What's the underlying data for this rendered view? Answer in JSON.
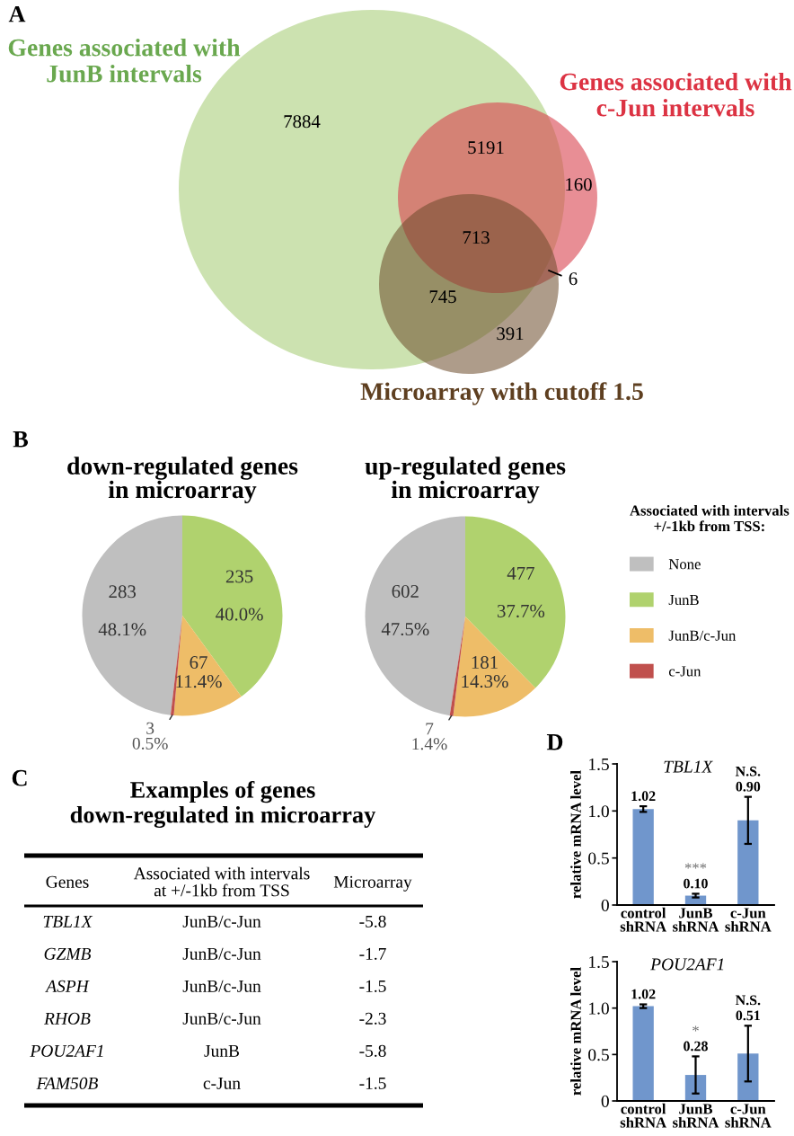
{
  "chart_data": [
    {
      "type": "other",
      "annotations": [
        "A",
        "Genes associated with\nJunB intervals",
        "Genes associated with\nc-Jun intervals",
        "Microarray with cutoff 1.5"
      ],
      "categories": [
        null,
        null,
        null,
        null,
        null,
        null,
        null
      ],
      "values": [
        7884,
        5191,
        160,
        713,
        745,
        6,
        391
      ],
      "data_labels": true
    },
    {
      "type": "pie",
      "title": "down-regulated genes\nin microarray",
      "annotations": [
        "B"
      ],
      "categories": [
        "None",
        "JunB",
        "JunB/c-Jun",
        "c-Jun"
      ],
      "values": [
        283,
        235,
        67,
        3
      ],
      "colors": [
        "#bfbfbf",
        "#b0d26e",
        "#eebd68",
        "#c0504d"
      ],
      "value_labels": [
        "283\n48.1%",
        "235\n40.0%",
        "67\n11.4%",
        "3\n0.5%"
      ],
      "legend": "right",
      "legend_title": "Associated with intervals\n+/-1kb from TSS:"
    },
    {
      "type": "pie",
      "title": "up-regulated genes\nin microarray",
      "categories": [
        null,
        null,
        null,
        null
      ],
      "values": [
        602,
        477,
        181,
        7
      ],
      "colors": [
        "#bfbfbf",
        "#b0d26e",
        "#eebd68",
        "#c0504d"
      ],
      "value_labels": [
        "602\n47.5%",
        "477\n37.7%",
        "181\n14.3%",
        "7\n1.4%"
      ]
    },
    {
      "type": "other",
      "title": "Examples of genes\ndown-regulated in microarray",
      "annotations": [
        "C",
        "Genes",
        "Associated with intervals\nat +/-1kb from TSS",
        "Microarray"
      ],
      "categories": [
        "TBL1X",
        "GZMB",
        "ASPH",
        "RHOB",
        "POU2AF1",
        "FAM50B"
      ],
      "cell_labels": [
        [
          "JunB/c-Jun"
        ],
        [
          "JunB/c-Jun"
        ],
        [
          "JunB/c-Jun"
        ],
        [
          "JunB/c-Jun"
        ],
        [
          "JunB"
        ],
        [
          "c-Jun"
        ]
      ],
      "values": [
        -5.8,
        -1.7,
        -1.5,
        -2.3,
        -5.8,
        -1.5
      ],
      "data_labels": true
    },
    {
      "type": "bar",
      "title": "TBL1X",
      "annotations": [
        "D",
        "***",
        "N.S."
      ],
      "ylabel": "relative mRNA level",
      "categories": [
        "control\nshRNA",
        "JunB\nshRNA",
        "c-Jun\nshRNA"
      ],
      "values": [
        1.02,
        0.1,
        0.9
      ],
      "errors": [
        0.03,
        0.02,
        0.25
      ],
      "value_labels": [
        "1.02",
        "0.10",
        "0.90"
      ],
      "color": "#7096cc",
      "ylim": [
        0,
        1.5
      ],
      "yticks": [
        0,
        0.5,
        {
          "value": 1,
          "label": "1.0"
        },
        1.5
      ]
    },
    {
      "type": "bar",
      "title": "POU2AF1",
      "annotations": [
        "*",
        "N.S."
      ],
      "ylabel": "relative mRNA level",
      "categories": [
        "control\nshRNA",
        "JunB\nshRNA",
        "c-Jun\nshRNA"
      ],
      "values": [
        1.02,
        0.28,
        0.51
      ],
      "errors": [
        0.02,
        0.2,
        0.3
      ],
      "value_labels": [
        "1.02",
        "0.28",
        "0.51"
      ],
      "color": "#7096cc",
      "ylim": [
        0,
        1.5
      ],
      "yticks": [
        0,
        0.5,
        {
          "value": 1,
          "label": "1.0"
        },
        1.5
      ]
    }
  ]
}
